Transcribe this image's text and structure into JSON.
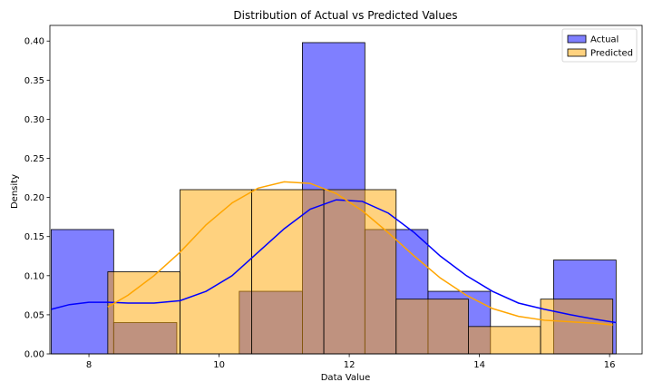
{
  "chart_data": {
    "type": "histogram",
    "title": "Distribution of Actual vs Predicted Values",
    "xlabel": "Data Value",
    "ylabel": "Density",
    "xlim": [
      7.4,
      16.5
    ],
    "ylim": [
      0,
      0.42
    ],
    "xticks": [
      8,
      10,
      12,
      14,
      16
    ],
    "xtick_labels": [
      "8",
      "10",
      "12",
      "14",
      "16"
    ],
    "yticks": [
      0,
      0.05,
      0.1,
      0.15,
      0.2,
      0.25,
      0.3,
      0.35,
      0.4
    ],
    "ytick_labels": [
      "0.00",
      "0.05",
      "0.10",
      "0.15",
      "0.20",
      "0.25",
      "0.30",
      "0.35",
      "0.40"
    ],
    "legend_position": "top-right",
    "series": [
      {
        "name": "Actual",
        "color": "#0000ff",
        "fill_opacity": 0.5,
        "bins": [
          {
            "x0": 7.42,
            "x1": 8.38,
            "density": 0.159
          },
          {
            "x0": 8.38,
            "x1": 9.35,
            "density": 0.04
          },
          {
            "x0": 10.31,
            "x1": 11.28,
            "density": 0.08
          },
          {
            "x0": 11.28,
            "x1": 12.24,
            "density": 0.398
          },
          {
            "x0": 12.24,
            "x1": 13.21,
            "density": 0.159
          },
          {
            "x0": 13.21,
            "x1": 14.17,
            "density": 0.08
          },
          {
            "x0": 15.14,
            "x1": 16.1,
            "density": 0.12
          }
        ],
        "kde": [
          [
            7.42,
            0.057
          ],
          [
            7.7,
            0.063
          ],
          [
            8.0,
            0.066
          ],
          [
            8.3,
            0.066
          ],
          [
            8.6,
            0.065
          ],
          [
            9.0,
            0.065
          ],
          [
            9.4,
            0.068
          ],
          [
            9.8,
            0.08
          ],
          [
            10.2,
            0.1
          ],
          [
            10.6,
            0.13
          ],
          [
            11.0,
            0.16
          ],
          [
            11.4,
            0.185
          ],
          [
            11.8,
            0.197
          ],
          [
            12.2,
            0.195
          ],
          [
            12.6,
            0.18
          ],
          [
            13.0,
            0.155
          ],
          [
            13.4,
            0.125
          ],
          [
            13.8,
            0.1
          ],
          [
            14.2,
            0.08
          ],
          [
            14.6,
            0.065
          ],
          [
            15.0,
            0.057
          ],
          [
            15.4,
            0.05
          ],
          [
            15.8,
            0.044
          ],
          [
            16.1,
            0.04
          ]
        ]
      },
      {
        "name": "Predicted",
        "color": "#ffa500",
        "fill_opacity": 0.5,
        "bins": [
          {
            "x0": 8.29,
            "x1": 9.4,
            "density": 0.105
          },
          {
            "x0": 9.4,
            "x1": 10.5,
            "density": 0.21
          },
          {
            "x0": 10.5,
            "x1": 11.61,
            "density": 0.21
          },
          {
            "x0": 11.61,
            "x1": 12.72,
            "density": 0.21
          },
          {
            "x0": 12.72,
            "x1": 13.83,
            "density": 0.07
          },
          {
            "x0": 13.83,
            "x1": 14.94,
            "density": 0.035
          },
          {
            "x0": 14.94,
            "x1": 16.05,
            "density": 0.07
          }
        ],
        "kde": [
          [
            8.29,
            0.06
          ],
          [
            8.6,
            0.075
          ],
          [
            9.0,
            0.1
          ],
          [
            9.4,
            0.13
          ],
          [
            9.8,
            0.165
          ],
          [
            10.2,
            0.193
          ],
          [
            10.6,
            0.212
          ],
          [
            11.0,
            0.22
          ],
          [
            11.4,
            0.218
          ],
          [
            11.8,
            0.205
          ],
          [
            12.2,
            0.183
          ],
          [
            12.6,
            0.155
          ],
          [
            13.0,
            0.125
          ],
          [
            13.4,
            0.097
          ],
          [
            13.8,
            0.075
          ],
          [
            14.2,
            0.058
          ],
          [
            14.6,
            0.048
          ],
          [
            15.0,
            0.043
          ],
          [
            15.4,
            0.041
          ],
          [
            15.8,
            0.039
          ],
          [
            16.05,
            0.037
          ]
        ]
      }
    ]
  }
}
